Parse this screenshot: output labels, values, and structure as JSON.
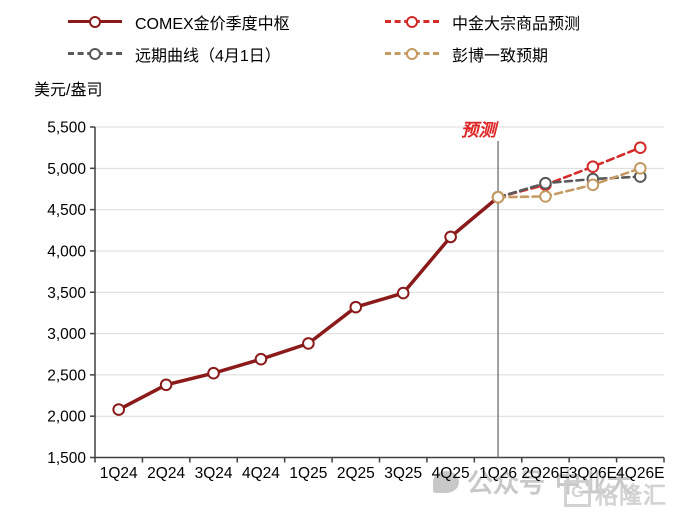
{
  "chart_data": {
    "type": "line",
    "unit_label": "美元/盎司",
    "categories": [
      "1Q24",
      "2Q24",
      "3Q24",
      "4Q24",
      "1Q25",
      "2Q25",
      "3Q25",
      "4Q25",
      "1Q26",
      "2Q26E",
      "3Q26E",
      "4Q26E"
    ],
    "ylim": [
      1500,
      5500
    ],
    "yticks": [
      {
        "v": 1500,
        "label": "1,500"
      },
      {
        "v": 2000,
        "label": "2,000"
      },
      {
        "v": 2500,
        "label": "2,500"
      },
      {
        "v": 3000,
        "label": "3,000"
      },
      {
        "v": 3500,
        "label": "3,500"
      },
      {
        "v": 4000,
        "label": "4,000"
      },
      {
        "v": 4500,
        "label": "4,500"
      },
      {
        "v": 5000,
        "label": "5,000"
      },
      {
        "v": 5500,
        "label": "5,500"
      }
    ],
    "series": [
      {
        "key": "comex-gold-quarterly",
        "name": "COMEX金价季度中枢",
        "color": "#8B1B1B",
        "line": "solid",
        "start": 0,
        "values": [
          2080,
          2380,
          2520,
          2690,
          2880,
          3320,
          3490,
          4170,
          4650
        ],
        "skip_first_marker": false
      },
      {
        "key": "cicc-commodity-forecast",
        "name": "中金大宗商品预测",
        "color": "#D42A2A",
        "line": "dashed",
        "start": 8,
        "values": [
          4650,
          4800,
          5020,
          5250
        ],
        "skip_first_marker": true
      },
      {
        "key": "forward-curve-apr1",
        "name": "远期曲线（4月1日）",
        "color": "#595959",
        "line": "dashed",
        "start": 8,
        "values": [
          4650,
          4820,
          4870,
          4900
        ],
        "skip_first_marker": true
      },
      {
        "key": "bloomberg-consensus",
        "name": "彭博一致预期",
        "color": "#C49A62",
        "line": "dashed",
        "start": 8,
        "values": [
          4650,
          4660,
          4800,
          5000
        ],
        "skip_first_marker": false
      }
    ],
    "annotation": {
      "text": "预测",
      "color": "#E02424",
      "at_index": 8
    },
    "colors": {
      "axis": "#404040",
      "grid": "#DBDBDB",
      "divider": "#6E6E6E"
    },
    "legend_position": "top",
    "grid": "horizontal-only"
  },
  "watermarks": {
    "center_primary": "公众号",
    "center_secondary": "中业大",
    "brand_initial": "G",
    "brand_name": "格隆汇"
  }
}
